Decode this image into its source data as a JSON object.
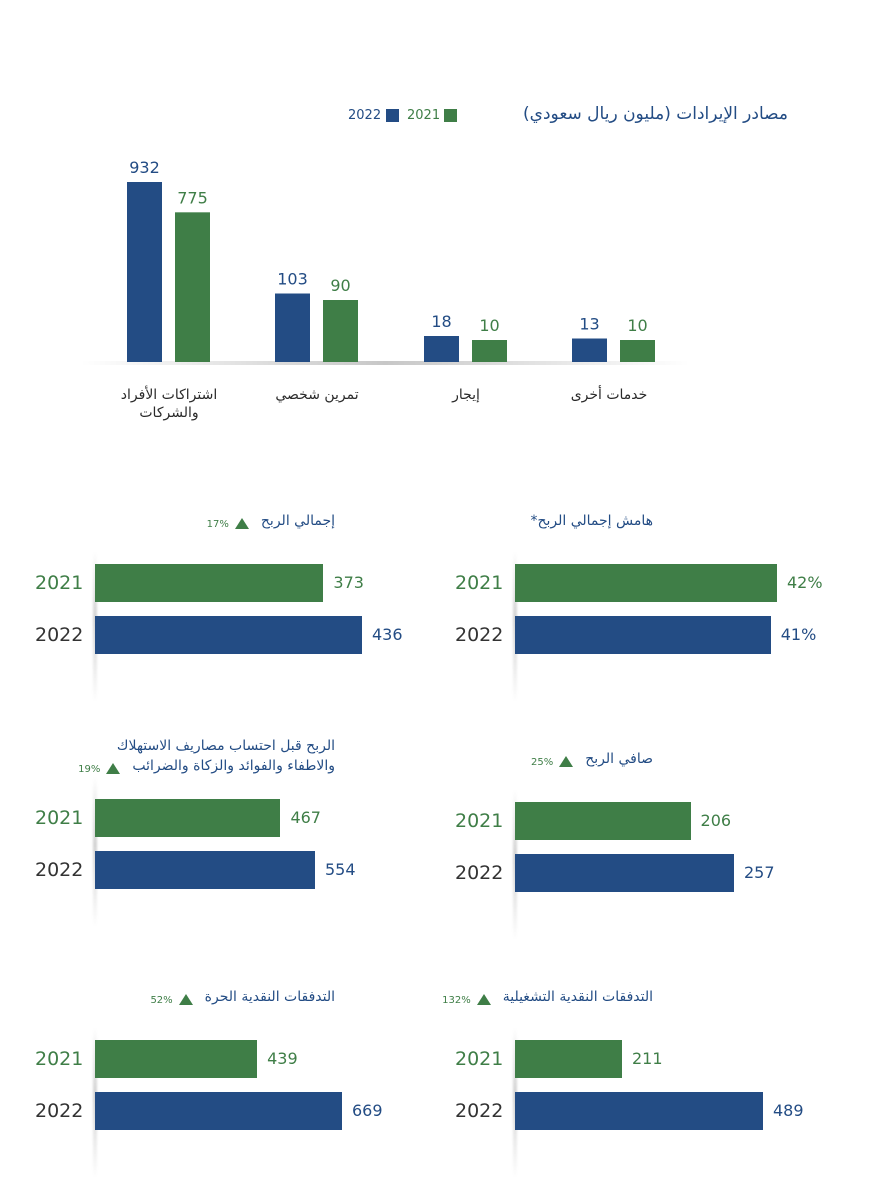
{
  "colors": {
    "y2022": "#234c84",
    "y2021": "#3f7e47"
  },
  "revenue": {
    "title": "مصادر الإيرادات (مليون ريال سعودي)",
    "legend": [
      {
        "label": "2022",
        "color": "#234c84"
      },
      {
        "label": "2021",
        "color": "#3f7e47"
      }
    ]
  },
  "chart_data": [
    {
      "type": "bar",
      "title": "مصادر الإيرادات (مليون ريال سعودي)",
      "categories": [
        "اشتراكات الأفراد والشركات",
        "تمرين شخصي",
        "إيجار",
        "خدمات أخرى"
      ],
      "series": [
        {
          "name": "2022",
          "values": [
            932,
            103,
            18,
            13
          ]
        },
        {
          "name": "2021",
          "values": [
            775,
            90,
            10,
            10
          ]
        }
      ],
      "ylim": [
        0,
        932
      ],
      "grid": false,
      "legend_position": "top-left"
    },
    {
      "type": "bar",
      "orientation": "horizontal",
      "title": "إجمالي الربح",
      "change": "17%",
      "categories": [
        "2021",
        "2022"
      ],
      "values": [
        373,
        436
      ],
      "labels": [
        "373",
        "436"
      ]
    },
    {
      "type": "bar",
      "orientation": "horizontal",
      "title": "هامش إجمالي الربح*",
      "categories": [
        "2021",
        "2022"
      ],
      "values": [
        42,
        41
      ],
      "labels": [
        "42%",
        "41%"
      ]
    },
    {
      "type": "bar",
      "orientation": "horizontal",
      "title": "الربح قبل احتساب مصاريف الاستهلاك والاطفاء والفوائد والزكاة والضرائب",
      "change": "19%",
      "categories": [
        "2021",
        "2022"
      ],
      "values": [
        467,
        554
      ],
      "labels": [
        "467",
        "554"
      ]
    },
    {
      "type": "bar",
      "orientation": "horizontal",
      "title": "صافي الربح",
      "change": "25%",
      "categories": [
        "2021",
        "2022"
      ],
      "values": [
        206,
        257
      ],
      "labels": [
        "206",
        "257"
      ]
    },
    {
      "type": "bar",
      "orientation": "horizontal",
      "title": "التدفقات النقدية الحرة",
      "change": "52%",
      "categories": [
        "2021",
        "2022"
      ],
      "values": [
        439,
        669
      ],
      "labels": [
        "439",
        "669"
      ]
    },
    {
      "type": "bar",
      "orientation": "horizontal",
      "title": "التدفقات النقدية التشغيلية",
      "change": "132%",
      "categories": [
        "2021",
        "2022"
      ],
      "values": [
        211,
        489
      ],
      "labels": [
        "211",
        "489"
      ]
    }
  ],
  "panels": [
    {
      "title_lines": [
        "إجمالي الربح"
      ],
      "change": "17%"
    },
    {
      "title_lines": [
        "هامش إجمالي الربح*"
      ],
      "change": ""
    },
    {
      "title_lines": [
        "الربح قبل احتساب مصاريف الاستهلاك",
        "والاطفاء والفوائد والزكاة والضرائب"
      ],
      "change": "19%"
    },
    {
      "title_lines": [
        "صافي الربح"
      ],
      "change": "25%"
    },
    {
      "title_lines": [
        "التدفقات النقدية الحرة"
      ],
      "change": "52%"
    },
    {
      "title_lines": [
        "التدفقات النقدية التشغيلية"
      ],
      "change": "132%"
    }
  ]
}
